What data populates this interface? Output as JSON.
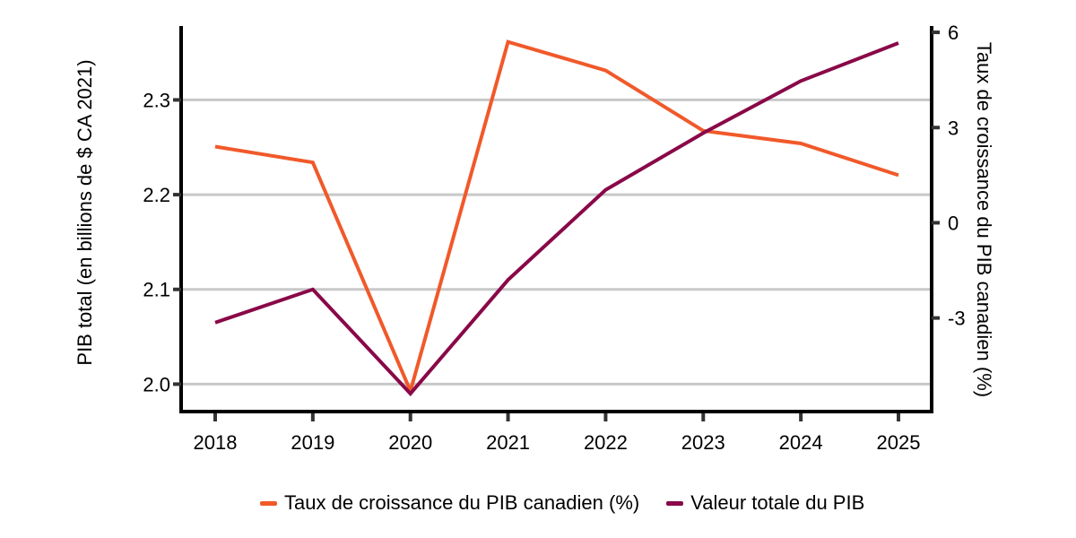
{
  "chart_data": {
    "type": "line",
    "x": [
      2018,
      2019,
      2020,
      2021,
      2022,
      2023,
      2024,
      2025
    ],
    "x_tick_labels": [
      "2018",
      "2019",
      "2020",
      "2021",
      "2022",
      "2023",
      "2024",
      "2025"
    ],
    "series": [
      {
        "name": "Taux de croissance du PIB canadien (%)",
        "axis": "right",
        "color": "#F1592A",
        "values": [
          2.4,
          1.9,
          -5.3,
          5.7,
          4.8,
          2.9,
          2.5,
          1.5
        ]
      },
      {
        "name": "Valeur totale du PIB",
        "axis": "left",
        "color": "#890848",
        "values": [
          2.065,
          2.1,
          1.99,
          2.11,
          2.205,
          2.265,
          2.32,
          2.36
        ]
      }
    ],
    "left_axis": {
      "label": "PIB total (en billions de $ CA 2021)",
      "ticks": [
        2.0,
        2.1,
        2.2,
        2.3
      ],
      "tick_labels": [
        "2.0",
        "2.1",
        "2.2",
        "2.3"
      ],
      "range": [
        1.972,
        2.378
      ]
    },
    "right_axis": {
      "label": "Taux de croissance du PIB canadien (%)",
      "ticks": [
        -3,
        0,
        3,
        6
      ],
      "tick_labels": [
        "-3",
        "0",
        "3",
        "6"
      ],
      "range": [
        -5.92,
        6.2
      ]
    },
    "grid": "horizontal gridlines at left-axis tick positions",
    "legend_position": "bottom"
  },
  "legend": {
    "items": [
      {
        "label": "Taux de croissance du PIB canadien (%)",
        "color": "#F1592A"
      },
      {
        "label": "Valeur totale du PIB",
        "color": "#890848"
      }
    ]
  },
  "colors": {
    "background": "#FFFFFF",
    "axis": "#000000",
    "tick": "#333333",
    "gridline": "#C8C8C8",
    "text": "#000000",
    "growth_line": "#F1592A",
    "total_line": "#890848"
  }
}
